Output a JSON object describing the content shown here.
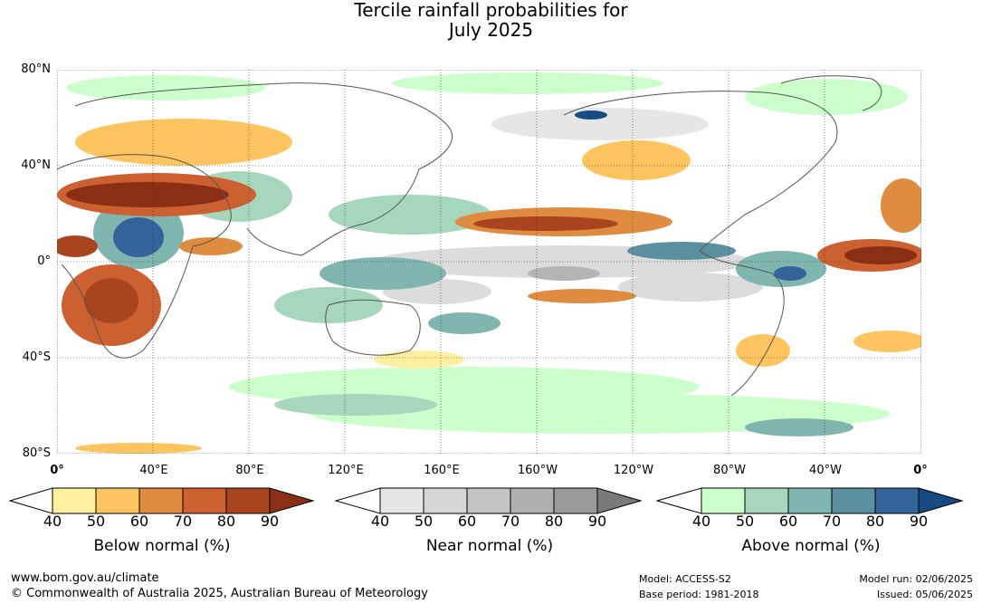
{
  "title_line1": "Tercile rainfall probabilities for",
  "title_line2": "July 2025",
  "lat_labels": [
    "80°N",
    "40°N",
    "0°",
    "40°S",
    "80°S"
  ],
  "lon_labels": [
    "0°",
    "40°E",
    "80°E",
    "120°E",
    "160°E",
    "160°W",
    "120°W",
    "80°W",
    "40°W",
    "0°"
  ],
  "legends": [
    {
      "label": "Below normal (%)",
      "ticks": [
        "40",
        "50",
        "60",
        "70",
        "80",
        "90"
      ],
      "colors": [
        "#ffffff",
        "#fff0a0",
        "#fdc460",
        "#e08c40",
        "#cc6030",
        "#a84420",
        "#8a2e14"
      ]
    },
    {
      "label": "Near normal (%)",
      "ticks": [
        "40",
        "50",
        "60",
        "70",
        "80",
        "90"
      ],
      "colors": [
        "#ffffff",
        "#e6e6e6",
        "#d6d6d6",
        "#c4c4c4",
        "#b0b0b0",
        "#9a9a9a",
        "#7a7a7a"
      ]
    },
    {
      "label": "Above normal (%)",
      "ticks": [
        "40",
        "50",
        "60",
        "70",
        "80",
        "90"
      ],
      "colors": [
        "#ffffff",
        "#ccffcc",
        "#a6d6bc",
        "#80b6b0",
        "#5a90a0",
        "#32649a",
        "#174a82"
      ]
    }
  ],
  "footer": {
    "website": "www.bom.gov.au/climate",
    "copyright": "© Commonwealth of Australia 2025, Australian Bureau of Meteorology",
    "model": "Model: ACCESS-S2",
    "base_period": "Base period: 1981-2018",
    "model_run": "Model run: 02/06/2025",
    "issued": "Issued: 05/06/2025"
  }
}
